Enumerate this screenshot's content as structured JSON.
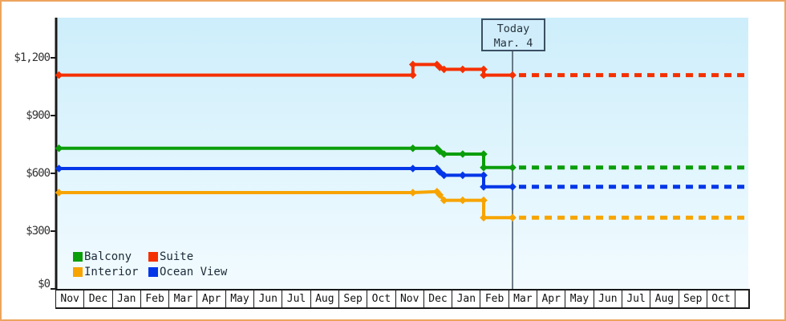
{
  "window": {
    "border_color": "#eda55e",
    "background": "#ffffff"
  },
  "chart_data": {
    "type": "line",
    "title": "",
    "description": "Cruise cabin price history by category with forecast after today",
    "grid": false,
    "plot_background": {
      "top_color": "#cdeefb",
      "bottom_color": "#f2fbff"
    },
    "axis_color": "#1a1a1a",
    "x_axis": {
      "months": [
        "Nov",
        "Dec",
        "Jan",
        "Feb",
        "Mar",
        "Apr",
        "May",
        "Jun",
        "Jul",
        "Aug",
        "Sep",
        "Oct",
        "Nov",
        "Dec",
        "Jan",
        "Feb",
        "Mar",
        "Apr",
        "May",
        "Jun",
        "Jul",
        "Aug",
        "Sep",
        "Oct"
      ]
    },
    "y_axis": {
      "min": 0,
      "max": 1200,
      "tick_step": 300,
      "ticks": [
        {
          "label": "$1,200",
          "value": 1200
        },
        {
          "label": "$900",
          "value": 900
        },
        {
          "label": "$600",
          "value": 600
        },
        {
          "label": "$300",
          "value": 300
        },
        {
          "label": "$0",
          "value": 0
        }
      ]
    },
    "today": {
      "line1": "Today",
      "line2": "Mar. 4",
      "month_index": 16.12,
      "line_color": "#41525f"
    },
    "legend_position": "bottom-left",
    "series": [
      {
        "name": "Balcony",
        "color": "#0a9e0a",
        "points": [
          [
            0.1,
            730
          ],
          [
            12.6,
            730
          ],
          [
            13.45,
            730
          ],
          [
            13.55,
            715
          ],
          [
            13.7,
            700
          ],
          [
            14.36,
            700
          ],
          [
            15.1,
            700
          ],
          [
            15.1,
            630
          ],
          [
            16.12,
            630
          ]
        ],
        "forecast_price": 630
      },
      {
        "name": "Suite",
        "color": "#f53000",
        "points": [
          [
            0.1,
            1110
          ],
          [
            12.6,
            1110
          ],
          [
            12.6,
            1165
          ],
          [
            13.45,
            1165
          ],
          [
            13.55,
            1150
          ],
          [
            13.7,
            1140
          ],
          [
            14.36,
            1140
          ],
          [
            15.1,
            1140
          ],
          [
            15.1,
            1110
          ],
          [
            16.12,
            1110
          ]
        ],
        "forecast_price": 1110
      },
      {
        "name": "Interior",
        "color": "#f7a400",
        "points": [
          [
            0.1,
            500
          ],
          [
            12.6,
            500
          ],
          [
            13.45,
            505
          ],
          [
            13.55,
            488
          ],
          [
            13.7,
            460
          ],
          [
            14.36,
            460
          ],
          [
            15.1,
            460
          ],
          [
            15.1,
            370
          ],
          [
            16.12,
            370
          ]
        ],
        "forecast_price": 370
      },
      {
        "name": "Ocean View",
        "color": "#0336e8",
        "points": [
          [
            0.1,
            625
          ],
          [
            12.6,
            625
          ],
          [
            13.45,
            625
          ],
          [
            13.55,
            608
          ],
          [
            13.7,
            590
          ],
          [
            14.36,
            590
          ],
          [
            15.1,
            590
          ],
          [
            15.1,
            530
          ],
          [
            16.12,
            530
          ]
        ],
        "forecast_price": 530
      }
    ]
  }
}
